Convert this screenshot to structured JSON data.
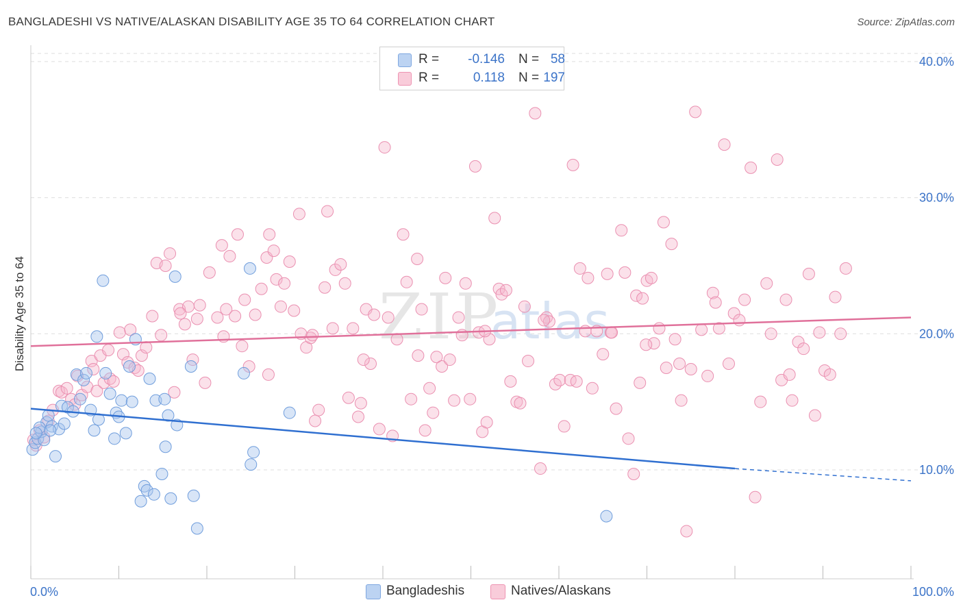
{
  "header": {
    "title": "BANGLADESHI VS NATIVE/ALASKAN DISABILITY AGE 35 TO 64 CORRELATION CHART",
    "source": "Source: ZipAtlas.com"
  },
  "watermark": {
    "zip": "ZIP",
    "atlas": "atlas"
  },
  "legend": {
    "rows": [
      {
        "r_label": "R =",
        "r_value": "-0.146",
        "n_label": "N =",
        "n_value": "58",
        "color": "#a9c6ee"
      },
      {
        "r_label": "R =",
        "r_value": "0.118",
        "n_label": "N =",
        "n_value": "197",
        "color": "#f6b8cc"
      }
    ]
  },
  "bottom_legend": {
    "items": [
      "Bangladeshis",
      "Natives/Alaskans"
    ]
  },
  "chart_data": {
    "type": "scatter",
    "title": "BANGLADESHI VS NATIVE/ALASKAN DISABILITY AGE 35 TO 64 CORRELATION CHART",
    "xlabel": "",
    "ylabel": "Disability Age 35 to 64",
    "xlim": [
      0,
      100
    ],
    "ylim": [
      2,
      41
    ],
    "x_tick_labels": [
      "0.0%",
      "100.0%"
    ],
    "y_tick_labels": [
      "10.0%",
      "20.0%",
      "30.0%",
      "40.0%"
    ],
    "y_ticks": [
      10,
      20,
      30,
      40
    ],
    "grid": true,
    "legend_position": "top-center",
    "series": [
      {
        "name": "Bangladeshis",
        "color": "#a9c6ee",
        "line_color": "#2f6fd0",
        "trend": {
          "x0": 0,
          "y0": 14.5,
          "x1": 80,
          "y1": 10.1,
          "dash_to_x": 100,
          "dash_to_y": 9.2
        },
        "points": [
          [
            0.2,
            11.5
          ],
          [
            0.5,
            12.0
          ],
          [
            0.8,
            12.3
          ],
          [
            1.2,
            12.8
          ],
          [
            1.5,
            12.2
          ],
          [
            1.8,
            13.5
          ],
          [
            2.0,
            14.0
          ],
          [
            2.4,
            13.2
          ],
          [
            2.8,
            11.0
          ],
          [
            3.2,
            13.0
          ],
          [
            3.5,
            14.7
          ],
          [
            3.8,
            13.4
          ],
          [
            4.2,
            14.6
          ],
          [
            4.8,
            14.3
          ],
          [
            5.2,
            17.0
          ],
          [
            5.6,
            15.2
          ],
          [
            6.0,
            16.6
          ],
          [
            6.3,
            17.1
          ],
          [
            6.8,
            14.4
          ],
          [
            7.2,
            12.9
          ],
          [
            7.5,
            19.8
          ],
          [
            7.7,
            13.7
          ],
          [
            8.2,
            23.9
          ],
          [
            8.5,
            17.1
          ],
          [
            9.0,
            15.6
          ],
          [
            9.5,
            12.3
          ],
          [
            9.7,
            14.2
          ],
          [
            10.0,
            13.9
          ],
          [
            10.3,
            15.1
          ],
          [
            10.8,
            12.7
          ],
          [
            11.2,
            17.6
          ],
          [
            11.5,
            15.0
          ],
          [
            11.9,
            19.6
          ],
          [
            12.5,
            7.7
          ],
          [
            12.9,
            8.8
          ],
          [
            13.2,
            8.5
          ],
          [
            13.5,
            16.7
          ],
          [
            14.0,
            8.2
          ],
          [
            14.2,
            15.1
          ],
          [
            14.9,
            9.7
          ],
          [
            15.2,
            15.2
          ],
          [
            15.3,
            11.7
          ],
          [
            15.6,
            14.0
          ],
          [
            15.9,
            7.9
          ],
          [
            16.4,
            24.2
          ],
          [
            16.6,
            13.3
          ],
          [
            18.2,
            17.6
          ],
          [
            18.5,
            8.1
          ],
          [
            18.9,
            5.7
          ],
          [
            24.2,
            17.1
          ],
          [
            24.9,
            24.8
          ],
          [
            25.0,
            10.4
          ],
          [
            25.3,
            11.3
          ],
          [
            29.4,
            14.2
          ],
          [
            65.4,
            6.6
          ],
          [
            1.0,
            13.1
          ],
          [
            2.2,
            12.9
          ],
          [
            0.6,
            12.7
          ]
        ]
      },
      {
        "name": "Natives/Alaskans",
        "color": "#f6b8cc",
        "line_color": "#e0709a",
        "trend": {
          "x0": 0,
          "y0": 19.1,
          "x1": 100,
          "y1": 21.2
        },
        "points": [
          [
            0.3,
            12.2
          ],
          [
            0.6,
            11.8
          ],
          [
            1.0,
            12.9
          ],
          [
            1.5,
            12.4
          ],
          [
            2.0,
            13.6
          ],
          [
            2.5,
            14.4
          ],
          [
            3.2,
            15.8
          ],
          [
            3.5,
            15.7
          ],
          [
            4.1,
            16.0
          ],
          [
            4.6,
            15.2
          ],
          [
            5.0,
            14.8
          ],
          [
            5.3,
            16.9
          ],
          [
            5.8,
            15.5
          ],
          [
            6.4,
            16.1
          ],
          [
            6.9,
            18.0
          ],
          [
            7.5,
            15.8
          ],
          [
            7.9,
            18.4
          ],
          [
            8.3,
            16.4
          ],
          [
            9.0,
            16.7
          ],
          [
            9.4,
            16.5
          ],
          [
            10.1,
            20.1
          ],
          [
            10.5,
            18.5
          ],
          [
            11.0,
            17.9
          ],
          [
            11.8,
            17.5
          ],
          [
            12.2,
            17.3
          ],
          [
            12.6,
            18.4
          ],
          [
            13.1,
            19.0
          ],
          [
            13.8,
            21.3
          ],
          [
            14.3,
            25.2
          ],
          [
            14.8,
            19.9
          ],
          [
            15.3,
            25.0
          ],
          [
            15.8,
            25.9
          ],
          [
            16.3,
            15.7
          ],
          [
            16.9,
            21.8
          ],
          [
            17.5,
            20.7
          ],
          [
            17.9,
            22.0
          ],
          [
            18.4,
            18.1
          ],
          [
            18.9,
            21.1
          ],
          [
            19.2,
            22.1
          ],
          [
            19.8,
            16.4
          ],
          [
            20.3,
            24.5
          ],
          [
            21.2,
            21.2
          ],
          [
            21.7,
            26.5
          ],
          [
            22.2,
            21.8
          ],
          [
            22.6,
            25.7
          ],
          [
            23.2,
            21.3
          ],
          [
            23.5,
            27.3
          ],
          [
            24.0,
            19.1
          ],
          [
            24.3,
            22.5
          ],
          [
            24.8,
            17.6
          ],
          [
            25.5,
            21.4
          ],
          [
            26.2,
            23.3
          ],
          [
            26.8,
            25.6
          ],
          [
            27.1,
            27.3
          ],
          [
            27.6,
            26.1
          ],
          [
            27.9,
            24.0
          ],
          [
            28.4,
            22.0
          ],
          [
            28.8,
            23.7
          ],
          [
            29.4,
            25.3
          ],
          [
            29.9,
            21.7
          ],
          [
            30.5,
            28.8
          ],
          [
            31.3,
            19.0
          ],
          [
            31.8,
            19.7
          ],
          [
            32.0,
            19.9
          ],
          [
            32.3,
            13.6
          ],
          [
            32.7,
            14.4
          ],
          [
            33.4,
            23.4
          ],
          [
            33.7,
            29.0
          ],
          [
            34.3,
            20.4
          ],
          [
            34.6,
            24.7
          ],
          [
            35.2,
            25.1
          ],
          [
            35.7,
            23.7
          ],
          [
            36.1,
            15.3
          ],
          [
            36.6,
            20.4
          ],
          [
            37.2,
            13.9
          ],
          [
            37.5,
            14.9
          ],
          [
            38.1,
            21.8
          ],
          [
            38.6,
            17.8
          ],
          [
            39.0,
            21.4
          ],
          [
            39.6,
            13.0
          ],
          [
            40.2,
            33.7
          ],
          [
            40.6,
            21.2
          ],
          [
            41.1,
            12.5
          ],
          [
            41.6,
            19.6
          ],
          [
            42.3,
            27.3
          ],
          [
            42.7,
            23.8
          ],
          [
            43.2,
            15.2
          ],
          [
            43.9,
            25.5
          ],
          [
            44.4,
            21.8
          ],
          [
            44.8,
            12.9
          ],
          [
            45.3,
            16.0
          ],
          [
            45.7,
            14.2
          ],
          [
            46.1,
            18.3
          ],
          [
            46.7,
            17.6
          ],
          [
            47.1,
            24.1
          ],
          [
            47.6,
            18.1
          ],
          [
            48.1,
            15.1
          ],
          [
            48.6,
            21.2
          ],
          [
            49.0,
            19.9
          ],
          [
            49.4,
            23.7
          ],
          [
            49.9,
            15.2
          ],
          [
            50.5,
            32.3
          ],
          [
            50.9,
            20.1
          ],
          [
            51.3,
            12.8
          ],
          [
            51.8,
            13.5
          ],
          [
            52.1,
            19.6
          ],
          [
            52.7,
            28.5
          ],
          [
            53.2,
            23.3
          ],
          [
            53.5,
            22.9
          ],
          [
            54.0,
            23.2
          ],
          [
            54.5,
            16.5
          ],
          [
            55.2,
            15.0
          ],
          [
            55.6,
            14.9
          ],
          [
            56.1,
            22.0
          ],
          [
            56.5,
            18.0
          ],
          [
            57.3,
            36.2
          ],
          [
            57.9,
            10.1
          ],
          [
            58.6,
            21.2
          ],
          [
            58.9,
            20.9
          ],
          [
            59.6,
            16.3
          ],
          [
            60.1,
            16.6
          ],
          [
            60.6,
            13.2
          ],
          [
            61.3,
            16.6
          ],
          [
            61.6,
            32.4
          ],
          [
            62.0,
            16.5
          ],
          [
            62.4,
            24.8
          ],
          [
            63.0,
            20.2
          ],
          [
            63.3,
            24.1
          ],
          [
            63.8,
            16.0
          ],
          [
            64.3,
            20.2
          ],
          [
            65.0,
            18.5
          ],
          [
            65.5,
            24.4
          ],
          [
            65.9,
            20.1
          ],
          [
            66.5,
            14.5
          ],
          [
            67.1,
            27.6
          ],
          [
            67.5,
            24.5
          ],
          [
            67.9,
            12.3
          ],
          [
            68.5,
            9.7
          ],
          [
            68.8,
            22.8
          ],
          [
            69.2,
            16.4
          ],
          [
            69.5,
            22.6
          ],
          [
            70.0,
            23.9
          ],
          [
            70.5,
            24.1
          ],
          [
            70.8,
            19.3
          ],
          [
            71.4,
            20.4
          ],
          [
            71.9,
            28.2
          ],
          [
            72.2,
            17.5
          ],
          [
            72.8,
            26.6
          ],
          [
            73.2,
            19.6
          ],
          [
            73.9,
            15.1
          ],
          [
            74.5,
            5.5
          ],
          [
            75.0,
            17.4
          ],
          [
            75.5,
            36.3
          ],
          [
            76.2,
            20.3
          ],
          [
            76.9,
            16.9
          ],
          [
            77.5,
            23.0
          ],
          [
            78.2,
            20.4
          ],
          [
            78.8,
            33.9
          ],
          [
            79.3,
            17.8
          ],
          [
            79.9,
            21.5
          ],
          [
            80.5,
            21.0
          ],
          [
            81.1,
            22.5
          ],
          [
            81.8,
            32.2
          ],
          [
            82.3,
            8.0
          ],
          [
            82.9,
            15.0
          ],
          [
            83.6,
            23.7
          ],
          [
            84.1,
            20.0
          ],
          [
            84.8,
            32.8
          ],
          [
            85.3,
            16.6
          ],
          [
            85.8,
            22.5
          ],
          [
            86.5,
            15.1
          ],
          [
            87.2,
            19.4
          ],
          [
            87.8,
            18.9
          ],
          [
            88.4,
            24.4
          ],
          [
            89.1,
            14.0
          ],
          [
            89.6,
            20.1
          ],
          [
            90.2,
            17.3
          ],
          [
            90.8,
            17.0
          ],
          [
            91.4,
            22.7
          ],
          [
            92.0,
            20.0
          ],
          [
            92.6,
            24.8
          ],
          [
            86.2,
            17.0
          ],
          [
            77.8,
            22.3
          ],
          [
            69.9,
            19.2
          ],
          [
            66.0,
            20.1
          ],
          [
            58.3,
            21.0
          ],
          [
            51.6,
            20.2
          ],
          [
            44.0,
            18.4
          ],
          [
            37.8,
            18.1
          ],
          [
            30.7,
            20.0
          ],
          [
            27.0,
            17.0
          ],
          [
            21.9,
            19.8
          ],
          [
            17.0,
            21.5
          ],
          [
            11.3,
            20.3
          ],
          [
            8.8,
            18.8
          ],
          [
            7.1,
            17.4
          ],
          [
            73.7,
            17.8
          ]
        ]
      }
    ]
  }
}
